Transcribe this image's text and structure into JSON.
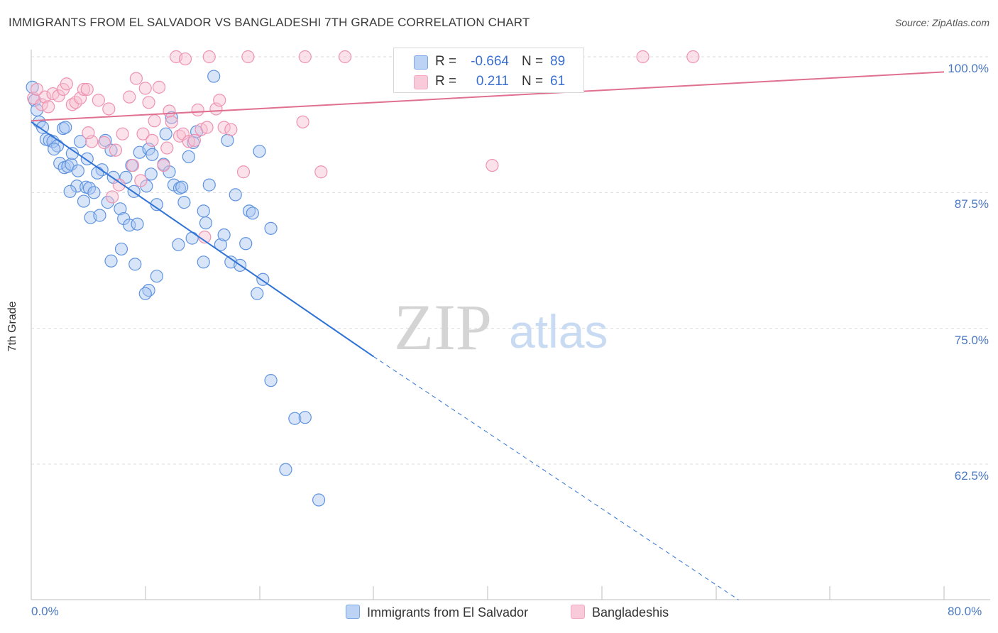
{
  "title": "IMMIGRANTS FROM EL SALVADOR VS BANGLADESHI 7TH GRADE CORRELATION CHART",
  "source": "Source: ZipAtlas.com",
  "watermark": {
    "zip": "ZIP",
    "atlas": "atlas"
  },
  "legend": {
    "r_label": "R =",
    "n_label": "N =",
    "series": [
      {
        "r": "-0.664",
        "n": "89"
      },
      {
        "r": "0.211",
        "n": "61"
      }
    ]
  },
  "bottom_legend": [
    "Immigrants from El Salvador",
    "Bangladeshis"
  ],
  "chart_data": {
    "type": "scatter",
    "title": "IMMIGRANTS FROM EL SALVADOR VS BANGLADESHI 7TH GRADE CORRELATION CHART",
    "xlabel": "",
    "ylabel": "7th Grade",
    "xlim": [
      0,
      80
    ],
    "ylim": [
      50,
      101
    ],
    "x_tick_labels": [
      "0.0%",
      "80.0%"
    ],
    "y_ticks": [
      62.5,
      75.0,
      87.5,
      100.0
    ],
    "y_tick_labels": [
      "62.5%",
      "75.0%",
      "87.5%",
      "100.0%"
    ],
    "grid": true,
    "colors": {
      "blue": "#7aa7e8",
      "blue_line": "#2f73d6",
      "pink": "#f4a7c0",
      "pink_line": "#e0708f"
    },
    "series": [
      {
        "name": "Immigrants from El Salvador",
        "r": -0.664,
        "n": 89,
        "trend": {
          "x0": 0,
          "y0": 94.0,
          "x1": 30,
          "y1": 72.4,
          "dash_to_x": 62,
          "dash_to_y": 50
        },
        "points": [
          [
            0.1,
            97.2
          ],
          [
            0.3,
            96.0
          ],
          [
            0.5,
            95.1
          ],
          [
            0.7,
            94.0
          ],
          [
            1.0,
            93.5
          ],
          [
            1.3,
            92.4
          ],
          [
            1.6,
            92.3
          ],
          [
            1.9,
            92.2
          ],
          [
            2.3,
            91.8
          ],
          [
            2.8,
            93.4
          ],
          [
            2.0,
            91.5
          ],
          [
            2.5,
            90.2
          ],
          [
            2.9,
            89.8
          ],
          [
            3.2,
            89.9
          ],
          [
            3.5,
            90.1
          ],
          [
            3.6,
            91.1
          ],
          [
            4.3,
            92.2
          ],
          [
            4.1,
            89.5
          ],
          [
            4.0,
            88.1
          ],
          [
            3.4,
            87.6
          ],
          [
            4.8,
            88.0
          ],
          [
            5.1,
            87.9
          ],
          [
            5.5,
            87.5
          ],
          [
            4.6,
            86.7
          ],
          [
            5.2,
            85.2
          ],
          [
            6.0,
            85.4
          ],
          [
            6.2,
            89.6
          ],
          [
            6.5,
            92.3
          ],
          [
            7.0,
            91.4
          ],
          [
            7.2,
            88.9
          ],
          [
            6.7,
            86.6
          ],
          [
            7.8,
            86.0
          ],
          [
            8.1,
            85.1
          ],
          [
            8.6,
            84.5
          ],
          [
            9.3,
            84.6
          ],
          [
            8.3,
            88.9
          ],
          [
            8.8,
            90.0
          ],
          [
            9.0,
            87.6
          ],
          [
            9.5,
            91.2
          ],
          [
            10.3,
            91.5
          ],
          [
            10.6,
            91.0
          ],
          [
            10.1,
            88.1
          ],
          [
            10.5,
            89.2
          ],
          [
            11.0,
            86.4
          ],
          [
            11.6,
            90.1
          ],
          [
            12.1,
            89.4
          ],
          [
            11.8,
            92.9
          ],
          [
            12.3,
            94.4
          ],
          [
            12.5,
            88.2
          ],
          [
            13.0,
            87.9
          ],
          [
            13.4,
            86.6
          ],
          [
            13.2,
            88.0
          ],
          [
            13.8,
            90.8
          ],
          [
            14.2,
            92.1
          ],
          [
            14.5,
            93.1
          ],
          [
            15.1,
            85.8
          ],
          [
            15.3,
            84.7
          ],
          [
            15.6,
            88.2
          ],
          [
            16.0,
            98.2
          ],
          [
            16.6,
            82.7
          ],
          [
            16.9,
            83.6
          ],
          [
            17.5,
            81.1
          ],
          [
            17.2,
            92.3
          ],
          [
            17.9,
            87.3
          ],
          [
            18.3,
            80.8
          ],
          [
            18.8,
            82.8
          ],
          [
            19.1,
            85.8
          ],
          [
            19.4,
            85.6
          ],
          [
            20.0,
            91.3
          ],
          [
            20.3,
            79.5
          ],
          [
            19.8,
            78.2
          ],
          [
            21.0,
            84.2
          ],
          [
            21.0,
            70.2
          ],
          [
            23.1,
            66.7
          ],
          [
            24.0,
            66.8
          ],
          [
            11.0,
            79.8
          ],
          [
            10.3,
            78.5
          ],
          [
            10.0,
            78.2
          ],
          [
            9.1,
            80.9
          ],
          [
            7.9,
            82.3
          ],
          [
            7.0,
            81.2
          ],
          [
            15.1,
            81.1
          ],
          [
            12.9,
            82.7
          ],
          [
            14.1,
            83.3
          ],
          [
            5.8,
            89.3
          ],
          [
            4.9,
            90.6
          ],
          [
            22.3,
            62.0
          ],
          [
            25.2,
            59.2
          ],
          [
            3.0,
            93.5
          ]
        ]
      },
      {
        "name": "Bangladeshis",
        "r": 0.211,
        "n": 61,
        "trend": {
          "x0": 0,
          "y0": 94.1,
          "x1": 80,
          "y1": 98.6
        },
        "points": [
          [
            0.2,
            96.2
          ],
          [
            0.5,
            97.0
          ],
          [
            0.9,
            95.6
          ],
          [
            1.2,
            96.3
          ],
          [
            1.5,
            95.4
          ],
          [
            1.9,
            96.6
          ],
          [
            2.4,
            96.4
          ],
          [
            2.8,
            97.0
          ],
          [
            3.1,
            97.5
          ],
          [
            3.6,
            95.6
          ],
          [
            3.9,
            95.8
          ],
          [
            4.3,
            96.2
          ],
          [
            4.6,
            97.0
          ],
          [
            4.9,
            97.0
          ],
          [
            5.3,
            92.2
          ],
          [
            5.0,
            93.0
          ],
          [
            5.9,
            96.0
          ],
          [
            6.4,
            92.1
          ],
          [
            6.8,
            95.2
          ],
          [
            7.4,
            91.4
          ],
          [
            7.7,
            88.2
          ],
          [
            7.1,
            87.1
          ],
          [
            8.0,
            92.9
          ],
          [
            8.6,
            96.3
          ],
          [
            8.9,
            90.0
          ],
          [
            9.2,
            98.0
          ],
          [
            9.8,
            92.9
          ],
          [
            9.6,
            88.6
          ],
          [
            10.0,
            97.1
          ],
          [
            10.3,
            95.8
          ],
          [
            10.6,
            92.3
          ],
          [
            10.8,
            94.1
          ],
          [
            11.2,
            97.2
          ],
          [
            11.6,
            90.0
          ],
          [
            11.9,
            91.6
          ],
          [
            12.1,
            95.0
          ],
          [
            12.3,
            94.0
          ],
          [
            12.7,
            100.0
          ],
          [
            13.0,
            92.7
          ],
          [
            13.5,
            99.8
          ],
          [
            13.3,
            92.9
          ],
          [
            13.8,
            92.2
          ],
          [
            14.3,
            92.3
          ],
          [
            14.6,
            95.1
          ],
          [
            14.9,
            93.3
          ],
          [
            15.4,
            93.5
          ],
          [
            15.2,
            83.4
          ],
          [
            15.6,
            100.0
          ],
          [
            16.2,
            95.2
          ],
          [
            16.5,
            96.0
          ],
          [
            16.9,
            93.5
          ],
          [
            17.5,
            93.3
          ],
          [
            18.6,
            89.4
          ],
          [
            19.0,
            100.0
          ],
          [
            23.8,
            94.0
          ],
          [
            24.0,
            100.0
          ],
          [
            25.4,
            89.4
          ],
          [
            27.5,
            100.0
          ],
          [
            40.4,
            90.0
          ],
          [
            53.6,
            100.0
          ],
          [
            58.0,
            100.0
          ]
        ]
      }
    ]
  }
}
